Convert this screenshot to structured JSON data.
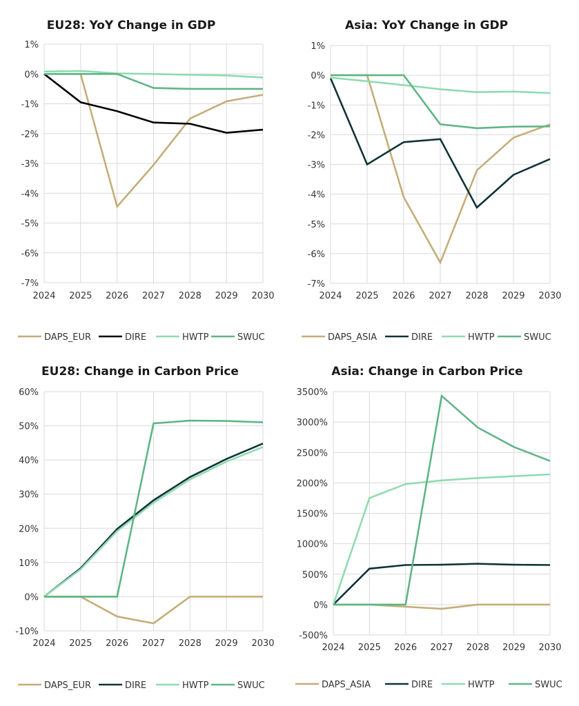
{
  "colors": {
    "DAPS": "#c4ad78",
    "DIRE_black": "#000000",
    "DIRE_dark": "#0f3338",
    "HWTP": "#8fdbb1",
    "SWUC": "#5fb585"
  },
  "chart_data": [
    {
      "type": "line",
      "title": "EU28: YoY Change in GDP",
      "x": [
        "2024",
        "2025",
        "2026",
        "2027",
        "2028",
        "2029",
        "2030"
      ],
      "ylim": [
        -7,
        1
      ],
      "yticks": [
        1,
        0,
        -1,
        -2,
        -3,
        -4,
        -5,
        -6,
        -7
      ],
      "ytick_labels": [
        "1%",
        "0%",
        "-1%",
        "-2%",
        "-3%",
        "-4%",
        "-5%",
        "-6%",
        "-7%"
      ],
      "grid": true,
      "legend": "bottom",
      "series": [
        {
          "name": "DAPS_EUR",
          "color_key": "DAPS",
          "values": [
            0,
            0,
            -4.45,
            -3.05,
            -1.5,
            -0.92,
            -0.7
          ]
        },
        {
          "name": "DIRE",
          "color_key": "DIRE_black",
          "values": [
            0,
            -0.95,
            -1.25,
            -1.63,
            -1.67,
            -1.97,
            -1.87
          ]
        },
        {
          "name": "HWTP",
          "color_key": "HWTP",
          "values": [
            0.08,
            0.1,
            0.02,
            0.0,
            -0.03,
            -0.05,
            -0.12
          ]
        },
        {
          "name": "SWUC",
          "color_key": "SWUC",
          "values": [
            0,
            0,
            0,
            -0.47,
            -0.5,
            -0.5,
            -0.5
          ]
        }
      ]
    },
    {
      "type": "line",
      "title": "Asia: YoY Change in GDP",
      "x": [
        "2024",
        "2025",
        "2026",
        "2027",
        "2028",
        "2029",
        "2030"
      ],
      "ylim": [
        -7,
        1
      ],
      "yticks": [
        1,
        0,
        -1,
        -2,
        -3,
        -4,
        -5,
        -6,
        -7
      ],
      "ytick_labels": [
        "1%",
        "0%",
        "-1%",
        "-2%",
        "-3%",
        "-4%",
        "-5%",
        "-6%",
        "-7%"
      ],
      "grid": true,
      "legend": "bottom",
      "series": [
        {
          "name": "DAPS_ASIA",
          "color_key": "DAPS",
          "values": [
            0,
            0,
            -4.1,
            -6.3,
            -3.2,
            -2.1,
            -1.65
          ]
        },
        {
          "name": "DIRE",
          "color_key": "DIRE_dark",
          "values": [
            -0.1,
            -3.0,
            -2.25,
            -2.15,
            -4.45,
            -3.35,
            -2.82
          ]
        },
        {
          "name": "HWTP",
          "color_key": "HWTP",
          "values": [
            -0.08,
            -0.2,
            -0.33,
            -0.47,
            -0.57,
            -0.55,
            -0.6
          ]
        },
        {
          "name": "SWUC",
          "color_key": "SWUC",
          "values": [
            0,
            0,
            0,
            -1.65,
            -1.78,
            -1.73,
            -1.72
          ]
        }
      ]
    },
    {
      "type": "line",
      "title": "EU28: Change in Carbon Price",
      "x": [
        "2024",
        "2025",
        "2026",
        "2027",
        "2028",
        "2029",
        "2030"
      ],
      "ylim": [
        -10,
        60
      ],
      "yticks": [
        60,
        50,
        40,
        30,
        20,
        10,
        0,
        -10
      ],
      "ytick_labels": [
        "60%",
        "50%",
        "40%",
        "30%",
        "20%",
        "10%",
        "0%",
        "-10%"
      ],
      "grid": true,
      "legend": "bottom",
      "series": [
        {
          "name": "DAPS_EUR",
          "color_key": "DAPS",
          "values": [
            0,
            0,
            -5.8,
            -7.8,
            0,
            0,
            0
          ]
        },
        {
          "name": "DIRE",
          "color_key": "DIRE_dark",
          "values": [
            0,
            8.3,
            19.8,
            28.2,
            35.0,
            40.3,
            44.8
          ]
        },
        {
          "name": "HWTP",
          "color_key": "HWTP",
          "values": [
            0,
            8.0,
            19.2,
            27.5,
            34.3,
            39.5,
            43.8
          ]
        },
        {
          "name": "SWUC",
          "color_key": "SWUC",
          "values": [
            0,
            0,
            0,
            50.7,
            51.5,
            51.4,
            51.0
          ]
        }
      ]
    },
    {
      "type": "line",
      "title": "Asia: Change in Carbon Price",
      "x": [
        "2024",
        "2025",
        "2026",
        "2027",
        "2028",
        "2029",
        "2030"
      ],
      "ylim": [
        -500,
        3500
      ],
      "yticks": [
        3500,
        3000,
        2500,
        2000,
        1500,
        1000,
        500,
        0,
        -500
      ],
      "ytick_labels": [
        "3500%",
        "3000%",
        "2500%",
        "2000%",
        "1500%",
        "1000%",
        "500%",
        "0%",
        "-500%"
      ],
      "grid": true,
      "legend": "bottom",
      "series": [
        {
          "name": "DAPS_ASIA",
          "color_key": "DAPS",
          "values": [
            0,
            0,
            -35,
            -70,
            0,
            0,
            0
          ]
        },
        {
          "name": "DIRE",
          "color_key": "DIRE_dark",
          "values": [
            0,
            590,
            650,
            655,
            670,
            655,
            650
          ]
        },
        {
          "name": "HWTP",
          "color_key": "HWTP",
          "values": [
            0,
            1750,
            1980,
            2040,
            2080,
            2110,
            2140
          ]
        },
        {
          "name": "SWUC",
          "color_key": "SWUC",
          "values": [
            0,
            0,
            0,
            3430,
            2910,
            2590,
            2360
          ]
        }
      ]
    }
  ]
}
